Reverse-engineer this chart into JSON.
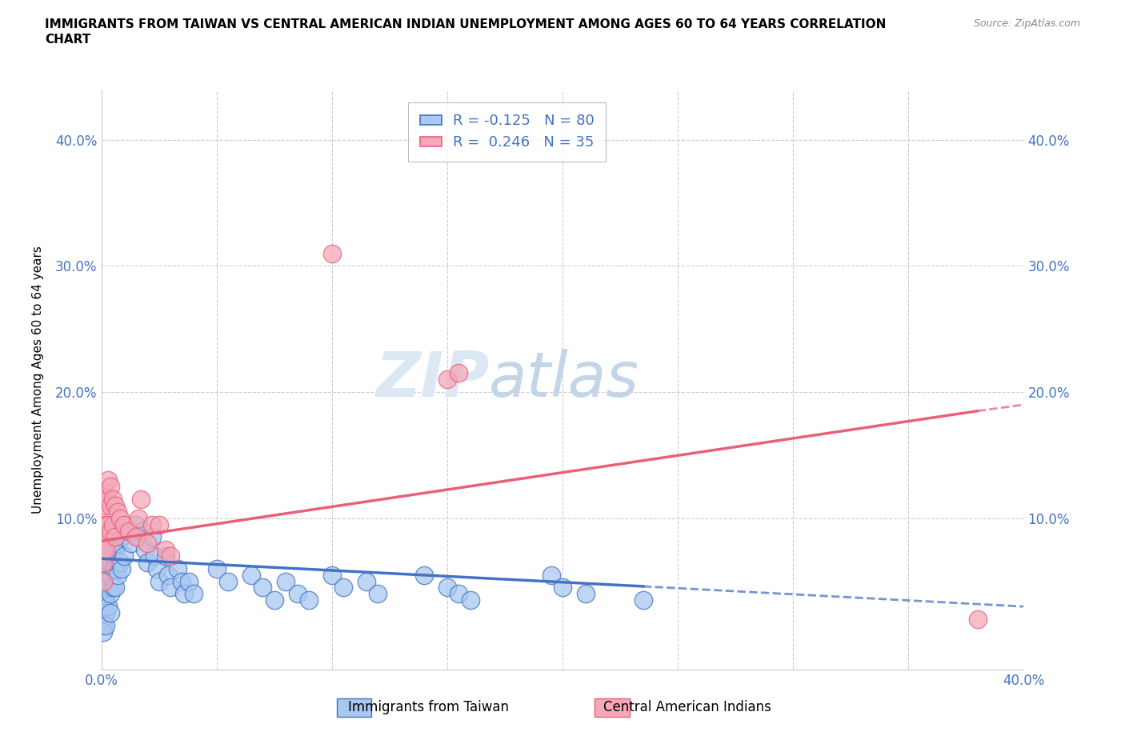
{
  "title": "IMMIGRANTS FROM TAIWAN VS CENTRAL AMERICAN INDIAN UNEMPLOYMENT AMONG AGES 60 TO 64 YEARS CORRELATION\nCHART",
  "source_text": "Source: ZipAtlas.com",
  "ylabel": "Unemployment Among Ages 60 to 64 years",
  "xlim": [
    0.0,
    0.4
  ],
  "ylim": [
    -0.02,
    0.44
  ],
  "xticks": [
    0.0,
    0.05,
    0.1,
    0.15,
    0.2,
    0.25,
    0.3,
    0.35,
    0.4
  ],
  "yticks": [
    0.0,
    0.1,
    0.2,
    0.3,
    0.4
  ],
  "color_taiwan": "#a8c8f0",
  "color_taiwan_line": "#4472c4",
  "color_cai": "#f4a8b8",
  "color_cai_line": "#e8607a",
  "color_text_blue": "#4472c4",
  "taiwan_line_x0": 0.0,
  "taiwan_line_y0": 0.068,
  "taiwan_line_x1": 0.235,
  "taiwan_line_y1": 0.046,
  "taiwan_line_dash_x1": 0.4,
  "taiwan_line_dash_y1": 0.03,
  "cai_line_x0": 0.0,
  "cai_line_y0": 0.082,
  "cai_line_x1": 0.38,
  "cai_line_y1": 0.185,
  "cai_line_dash_x1": 0.4,
  "cai_line_dash_y1": 0.19,
  "tw_x": [
    0.001,
    0.001,
    0.001,
    0.001,
    0.001,
    0.001,
    0.001,
    0.001,
    0.001,
    0.001,
    0.002,
    0.002,
    0.002,
    0.002,
    0.002,
    0.002,
    0.002,
    0.002,
    0.003,
    0.003,
    0.003,
    0.003,
    0.003,
    0.004,
    0.004,
    0.004,
    0.004,
    0.004,
    0.005,
    0.005,
    0.005,
    0.005,
    0.006,
    0.006,
    0.006,
    0.007,
    0.007,
    0.008,
    0.008,
    0.009,
    0.009,
    0.01,
    0.01,
    0.012,
    0.013,
    0.015,
    0.016,
    0.018,
    0.019,
    0.02,
    0.022,
    0.023,
    0.024,
    0.025,
    0.028,
    0.029,
    0.03,
    0.033,
    0.035,
    0.036,
    0.038,
    0.04,
    0.05,
    0.055,
    0.065,
    0.07,
    0.075,
    0.08,
    0.085,
    0.09,
    0.1,
    0.105,
    0.115,
    0.12,
    0.14,
    0.15,
    0.155,
    0.16,
    0.195,
    0.2,
    0.21,
    0.235
  ],
  "tw_y": [
    0.075,
    0.06,
    0.05,
    0.04,
    0.035,
    0.03,
    0.025,
    0.02,
    0.015,
    0.01,
    0.07,
    0.06,
    0.05,
    0.045,
    0.04,
    0.035,
    0.025,
    0.015,
    0.08,
    0.065,
    0.055,
    0.045,
    0.03,
    0.075,
    0.065,
    0.055,
    0.04,
    0.025,
    0.08,
    0.07,
    0.06,
    0.045,
    0.075,
    0.06,
    0.045,
    0.08,
    0.055,
    0.09,
    0.065,
    0.085,
    0.06,
    0.095,
    0.07,
    0.09,
    0.08,
    0.095,
    0.085,
    0.09,
    0.075,
    0.065,
    0.085,
    0.07,
    0.06,
    0.05,
    0.07,
    0.055,
    0.045,
    0.06,
    0.05,
    0.04,
    0.05,
    0.04,
    0.06,
    0.05,
    0.055,
    0.045,
    0.035,
    0.05,
    0.04,
    0.035,
    0.055,
    0.045,
    0.05,
    0.04,
    0.055,
    0.045,
    0.04,
    0.035,
    0.055,
    0.045,
    0.04,
    0.035
  ],
  "cai_x": [
    0.001,
    0.001,
    0.001,
    0.001,
    0.001,
    0.002,
    0.002,
    0.002,
    0.002,
    0.003,
    0.003,
    0.003,
    0.004,
    0.004,
    0.004,
    0.005,
    0.005,
    0.006,
    0.006,
    0.007,
    0.008,
    0.01,
    0.012,
    0.015,
    0.016,
    0.017,
    0.02,
    0.022,
    0.025,
    0.028,
    0.03,
    0.1,
    0.15,
    0.155,
    0.38
  ],
  "cai_y": [
    0.095,
    0.085,
    0.075,
    0.065,
    0.05,
    0.12,
    0.11,
    0.095,
    0.075,
    0.13,
    0.115,
    0.095,
    0.125,
    0.11,
    0.09,
    0.115,
    0.095,
    0.11,
    0.085,
    0.105,
    0.1,
    0.095,
    0.09,
    0.085,
    0.1,
    0.115,
    0.08,
    0.095,
    0.095,
    0.075,
    0.07,
    0.31,
    0.21,
    0.215,
    0.02
  ]
}
